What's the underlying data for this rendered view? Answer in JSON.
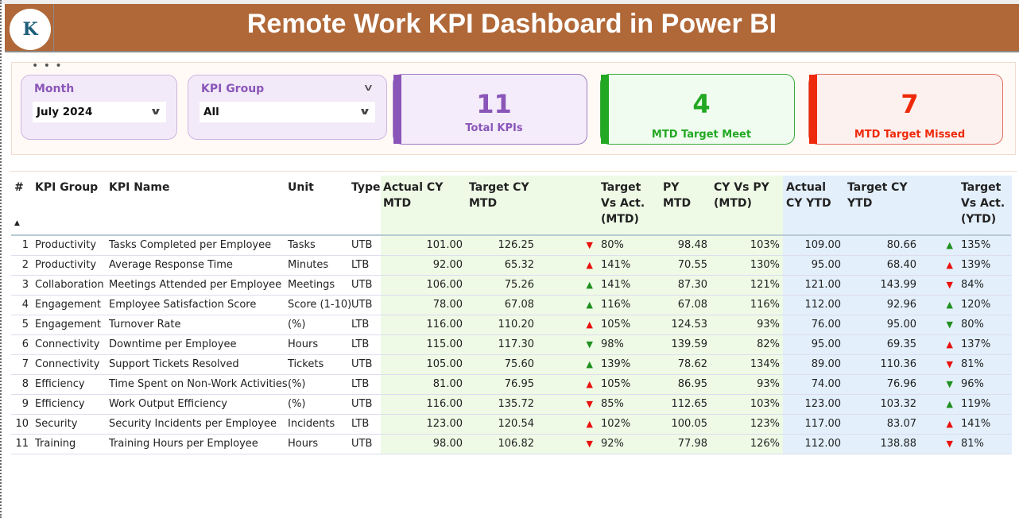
{
  "header": {
    "title": "Remote Work KPI Dashboard in Power BI",
    "logo_text": "K"
  },
  "slicers": {
    "month": {
      "label": "Month",
      "value": "July 2024"
    },
    "kpi_group": {
      "label": "KPI Group",
      "value": "All"
    }
  },
  "cards": [
    {
      "value": "11",
      "label": "Total KPIs",
      "color": "#8a55b8"
    },
    {
      "value": "4",
      "label": "MTD Target Meet",
      "color": "#22a822"
    },
    {
      "value": "7",
      "label": "MTD Target Missed",
      "color": "#ee2a0c"
    }
  ],
  "table": {
    "columns": [
      "#",
      "KPI Group",
      "KPI Name",
      "Unit",
      "Type",
      "Actual CY MTD",
      "Target CY MTD",
      "",
      "Target Vs Act. (MTD)",
      "PY MTD",
      "CY Vs PY (MTD)",
      "Actual CY YTD",
      "Target CY YTD",
      "",
      "Target Vs Act. (YTD)"
    ],
    "rows": [
      {
        "n": "1",
        "group": "Productivity",
        "name": "Tasks Completed per Employee",
        "unit": "Tasks",
        "type": "UTB",
        "act_mtd": "101.00",
        "tgt_mtd": "126.25",
        "icon_mtd": "down-red",
        "tva_mtd": "80%",
        "py_mtd": "98.48",
        "cyvpy": "103%",
        "act_ytd": "109.00",
        "tgt_ytd": "80.66",
        "icon_ytd": "up-green",
        "tva_ytd": "135%"
      },
      {
        "n": "2",
        "group": "Productivity",
        "name": "Average Response Time",
        "unit": "Minutes",
        "type": "LTB",
        "act_mtd": "92.00",
        "tgt_mtd": "65.32",
        "icon_mtd": "up-red",
        "tva_mtd": "141%",
        "py_mtd": "70.55",
        "cyvpy": "130%",
        "act_ytd": "95.00",
        "tgt_ytd": "68.40",
        "icon_ytd": "up-red",
        "tva_ytd": "139%"
      },
      {
        "n": "3",
        "group": "Collaboration",
        "name": "Meetings Attended per Employee",
        "unit": "Meetings",
        "type": "UTB",
        "act_mtd": "106.00",
        "tgt_mtd": "75.26",
        "icon_mtd": "up-green",
        "tva_mtd": "141%",
        "py_mtd": "87.30",
        "cyvpy": "121%",
        "act_ytd": "121.00",
        "tgt_ytd": "143.99",
        "icon_ytd": "down-red",
        "tva_ytd": "84%"
      },
      {
        "n": "4",
        "group": "Engagement",
        "name": "Employee Satisfaction Score",
        "unit": "Score (1-10)",
        "type": "UTB",
        "act_mtd": "78.00",
        "tgt_mtd": "67.08",
        "icon_mtd": "up-green",
        "tva_mtd": "116%",
        "py_mtd": "67.08",
        "cyvpy": "116%",
        "act_ytd": "112.00",
        "tgt_ytd": "92.96",
        "icon_ytd": "up-green",
        "tva_ytd": "120%"
      },
      {
        "n": "5",
        "group": "Engagement",
        "name": "Turnover Rate",
        "unit": "(%)",
        "type": "LTB",
        "act_mtd": "116.00",
        "tgt_mtd": "110.20",
        "icon_mtd": "up-red",
        "tva_mtd": "105%",
        "py_mtd": "124.53",
        "cyvpy": "93%",
        "act_ytd": "76.00",
        "tgt_ytd": "95.00",
        "icon_ytd": "down-green",
        "tva_ytd": "80%"
      },
      {
        "n": "6",
        "group": "Connectivity",
        "name": "Downtime per Employee",
        "unit": "Hours",
        "type": "LTB",
        "act_mtd": "115.00",
        "tgt_mtd": "117.30",
        "icon_mtd": "down-green",
        "tva_mtd": "98%",
        "py_mtd": "139.59",
        "cyvpy": "82%",
        "act_ytd": "95.00",
        "tgt_ytd": "69.35",
        "icon_ytd": "up-red",
        "tva_ytd": "137%"
      },
      {
        "n": "7",
        "group": "Connectivity",
        "name": "Support Tickets Resolved",
        "unit": "Tickets",
        "type": "UTB",
        "act_mtd": "105.00",
        "tgt_mtd": "75.60",
        "icon_mtd": "up-green",
        "tva_mtd": "139%",
        "py_mtd": "78.62",
        "cyvpy": "134%",
        "act_ytd": "89.00",
        "tgt_ytd": "110.36",
        "icon_ytd": "down-red",
        "tva_ytd": "81%"
      },
      {
        "n": "8",
        "group": "Efficiency",
        "name": "Time Spent on Non-Work Activities",
        "unit": "(%)",
        "type": "LTB",
        "act_mtd": "81.00",
        "tgt_mtd": "76.95",
        "icon_mtd": "up-red",
        "tva_mtd": "105%",
        "py_mtd": "86.95",
        "cyvpy": "93%",
        "act_ytd": "74.00",
        "tgt_ytd": "76.96",
        "icon_ytd": "down-green",
        "tva_ytd": "96%"
      },
      {
        "n": "9",
        "group": "Efficiency",
        "name": "Work Output Efficiency",
        "unit": "(%)",
        "type": "UTB",
        "act_mtd": "116.00",
        "tgt_mtd": "135.72",
        "icon_mtd": "down-red",
        "tva_mtd": "85%",
        "py_mtd": "112.65",
        "cyvpy": "103%",
        "act_ytd": "123.00",
        "tgt_ytd": "103.32",
        "icon_ytd": "up-green",
        "tva_ytd": "119%"
      },
      {
        "n": "10",
        "group": "Security",
        "name": "Security Incidents per Employee",
        "unit": "Incidents",
        "type": "LTB",
        "act_mtd": "123.00",
        "tgt_mtd": "120.54",
        "icon_mtd": "up-red",
        "tva_mtd": "102%",
        "py_mtd": "100.05",
        "cyvpy": "123%",
        "act_ytd": "117.00",
        "tgt_ytd": "83.07",
        "icon_ytd": "up-red",
        "tva_ytd": "141%"
      },
      {
        "n": "11",
        "group": "Training",
        "name": "Training Hours per Employee",
        "unit": "Hours",
        "type": "UTB",
        "act_mtd": "98.00",
        "tgt_mtd": "106.82",
        "icon_mtd": "down-red",
        "tva_mtd": "92%",
        "py_mtd": "77.98",
        "cyvpy": "126%",
        "act_ytd": "112.00",
        "tgt_ytd": "138.88",
        "icon_ytd": "down-red",
        "tva_ytd": "81%"
      }
    ]
  },
  "colors": {
    "header_bg": "#b06838",
    "green": "#1f8f1f",
    "red": "#e8100c",
    "mtd_bg": "#eefae6",
    "ytd_bg": "#e3effb"
  }
}
